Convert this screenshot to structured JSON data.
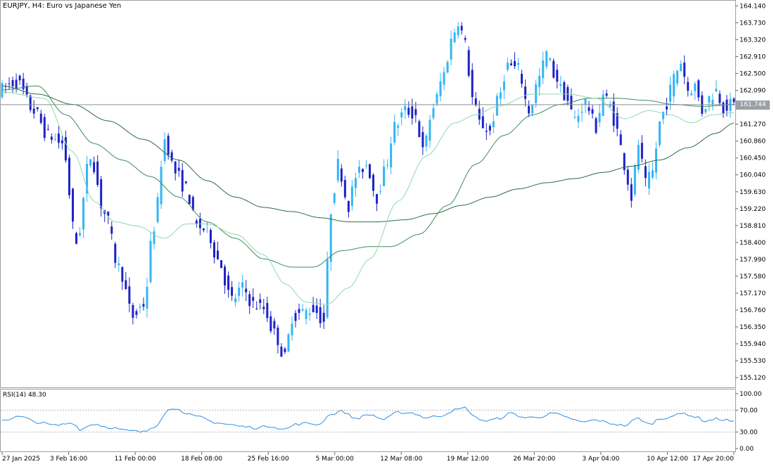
{
  "header": {
    "title": "EURJPY, H4:  Euro vs Japanese Yen",
    "current_price": "161.744"
  },
  "rsi_panel": {
    "title": "RSI(14) 48.30",
    "levels": [
      "100.00",
      "70.00",
      "30.00",
      "0.00"
    ]
  },
  "colors": {
    "bull": "#33b5f5",
    "bear": "#1c22c6",
    "ma_fast": "#8fd8b0",
    "ma_mid": "#3e8c5c",
    "ma_slow": "#2f6b47",
    "rsi": "#2f8fe0"
  },
  "chart_data": {
    "type": "candlestick",
    "symbol": "EURJPY",
    "timeframe": "H4",
    "title": "EURJPY, H4:  Euro vs Japanese Yen",
    "ylim": [
      154.9,
      164.25
    ],
    "y_ticks": [
      "164.140",
      "163.730",
      "163.320",
      "162.910",
      "162.500",
      "162.090",
      "161.680",
      "161.270",
      "160.860",
      "160.450",
      "160.040",
      "159.630",
      "159.220",
      "158.810",
      "158.400",
      "157.990",
      "157.580",
      "157.170",
      "156.760",
      "156.350",
      "155.940",
      "155.530",
      "155.120"
    ],
    "x_ticks": [
      "27 Jan 2025",
      "3 Feb 16:00",
      "11 Feb 00:00",
      "18 Feb 08:00",
      "25 Feb 16:00",
      "5 Mar 00:00",
      "12 Mar 08:00",
      "19 Mar 12:00",
      "26 Mar 20:00",
      "3 Apr 04:00",
      "10 Apr 12:00",
      "17 Apr 20:00"
    ],
    "current_price": 161.744,
    "price_anchors": [
      [
        0,
        162.1
      ],
      [
        5,
        162.3
      ],
      [
        10,
        161.6
      ],
      [
        14,
        161.0
      ],
      [
        18,
        160.8
      ],
      [
        22,
        158.4
      ],
      [
        26,
        160.5
      ],
      [
        30,
        159.1
      ],
      [
        34,
        157.8
      ],
      [
        38,
        156.6
      ],
      [
        41,
        156.9
      ],
      [
        44,
        158.8
      ],
      [
        47,
        160.9
      ],
      [
        50,
        160.1
      ],
      [
        53,
        159.7
      ],
      [
        56,
        158.8
      ],
      [
        59,
        158.7
      ],
      [
        62,
        158.0
      ],
      [
        66,
        157.0
      ],
      [
        69,
        157.3
      ],
      [
        72,
        156.9
      ],
      [
        75,
        156.8
      ],
      [
        78,
        156.2
      ],
      [
        81,
        155.6
      ],
      [
        83,
        156.6
      ],
      [
        86,
        156.7
      ],
      [
        89,
        156.8
      ],
      [
        92,
        156.5
      ],
      [
        94,
        159.2
      ],
      [
        96,
        160.3
      ],
      [
        99,
        159.3
      ],
      [
        101,
        160.0
      ],
      [
        104,
        160.3
      ],
      [
        107,
        159.5
      ],
      [
        109,
        160.1
      ],
      [
        112,
        161.2
      ],
      [
        115,
        161.6
      ],
      [
        118,
        161.5
      ],
      [
        120,
        160.6
      ],
      [
        123,
        161.7
      ],
      [
        126,
        162.5
      ],
      [
        128,
        163.3
      ],
      [
        130,
        163.8
      ],
      [
        132,
        163.2
      ],
      [
        134,
        161.9
      ],
      [
        136,
        161.3
      ],
      [
        139,
        161.1
      ],
      [
        141,
        161.8
      ],
      [
        144,
        162.7
      ],
      [
        147,
        162.6
      ],
      [
        150,
        161.6
      ],
      [
        153,
        162.4
      ],
      [
        155,
        163.0
      ],
      [
        157,
        162.5
      ],
      [
        160,
        162.0
      ],
      [
        163,
        161.4
      ],
      [
        166,
        161.8
      ],
      [
        169,
        161.2
      ],
      [
        171,
        162.0
      ],
      [
        173,
        161.7
      ],
      [
        175,
        161.1
      ],
      [
        177,
        160.3
      ],
      [
        179,
        159.5
      ],
      [
        181,
        160.8
      ],
      [
        183,
        159.8
      ],
      [
        185,
        160.1
      ],
      [
        187,
        161.3
      ],
      [
        189,
        161.8
      ],
      [
        191,
        162.4
      ],
      [
        193,
        162.8
      ],
      [
        195,
        162.1
      ],
      [
        197,
        162.2
      ],
      [
        199,
        161.6
      ],
      [
        201,
        161.9
      ],
      [
        203,
        162.1
      ],
      [
        205,
        161.7
      ],
      [
        207,
        161.74
      ]
    ],
    "ma_fast_anchors": [
      [
        0,
        162.05
      ],
      [
        12,
        161.9
      ],
      [
        20,
        160.6
      ],
      [
        26,
        159.4
      ],
      [
        32,
        158.9
      ],
      [
        38,
        158.8
      ],
      [
        46,
        158.5
      ],
      [
        52,
        158.85
      ],
      [
        58,
        158.85
      ],
      [
        66,
        158.6
      ],
      [
        74,
        158.1
      ],
      [
        80,
        157.4
      ],
      [
        86,
        156.95
      ],
      [
        92,
        156.9
      ],
      [
        98,
        157.3
      ],
      [
        104,
        158.0
      ],
      [
        112,
        159.4
      ],
      [
        120,
        160.5
      ],
      [
        128,
        161.3
      ],
      [
        134,
        161.5
      ],
      [
        140,
        161.7
      ],
      [
        150,
        162.0
      ],
      [
        160,
        162.0
      ],
      [
        168,
        161.9
      ],
      [
        176,
        161.4
      ],
      [
        183,
        161.6
      ],
      [
        189,
        161.5
      ],
      [
        195,
        161.3
      ],
      [
        201,
        161.5
      ],
      [
        207,
        161.55
      ]
    ],
    "ma_mid_anchors": [
      [
        0,
        162.1
      ],
      [
        10,
        162.2
      ],
      [
        18,
        161.5
      ],
      [
        26,
        160.8
      ],
      [
        34,
        160.4
      ],
      [
        42,
        160.0
      ],
      [
        50,
        159.5
      ],
      [
        58,
        158.9
      ],
      [
        66,
        158.5
      ],
      [
        74,
        158.0
      ],
      [
        82,
        157.8
      ],
      [
        88,
        157.8
      ],
      [
        96,
        158.2
      ],
      [
        104,
        158.3
      ],
      [
        110,
        158.3
      ],
      [
        118,
        158.6
      ],
      [
        126,
        159.3
      ],
      [
        134,
        160.3
      ],
      [
        142,
        161.0
      ],
      [
        150,
        161.5
      ],
      [
        158,
        161.75
      ],
      [
        166,
        161.9
      ],
      [
        174,
        161.9
      ],
      [
        182,
        161.85
      ],
      [
        190,
        161.75
      ],
      [
        198,
        161.7
      ],
      [
        207,
        161.75
      ]
    ],
    "ma_slow_anchors": [
      [
        0,
        162.2
      ],
      [
        10,
        162.0
      ],
      [
        20,
        161.75
      ],
      [
        30,
        161.35
      ],
      [
        40,
        160.9
      ],
      [
        50,
        160.4
      ],
      [
        58,
        159.9
      ],
      [
        66,
        159.5
      ],
      [
        74,
        159.25
      ],
      [
        82,
        159.15
      ],
      [
        90,
        159.0
      ],
      [
        98,
        158.9
      ],
      [
        106,
        158.9
      ],
      [
        114,
        158.95
      ],
      [
        122,
        159.1
      ],
      [
        130,
        159.3
      ],
      [
        138,
        159.5
      ],
      [
        146,
        159.7
      ],
      [
        154,
        159.85
      ],
      [
        162,
        159.95
      ],
      [
        170,
        160.1
      ],
      [
        178,
        160.25
      ],
      [
        186,
        160.4
      ],
      [
        194,
        160.7
      ],
      [
        202,
        161.05
      ],
      [
        207,
        161.3
      ]
    ],
    "rsi_anchors": [
      [
        0,
        52
      ],
      [
        5,
        58
      ],
      [
        10,
        48
      ],
      [
        15,
        42
      ],
      [
        20,
        47
      ],
      [
        22,
        35
      ],
      [
        26,
        45
      ],
      [
        30,
        39
      ],
      [
        36,
        32
      ],
      [
        40,
        30
      ],
      [
        43,
        40
      ],
      [
        47,
        70
      ],
      [
        50,
        74
      ],
      [
        52,
        62
      ],
      [
        56,
        57
      ],
      [
        60,
        48
      ],
      [
        64,
        44
      ],
      [
        68,
        40
      ],
      [
        72,
        38
      ],
      [
        76,
        41
      ],
      [
        80,
        35
      ],
      [
        83,
        44
      ],
      [
        86,
        46
      ],
      [
        90,
        44
      ],
      [
        92,
        60
      ],
      [
        96,
        68
      ],
      [
        100,
        55
      ],
      [
        104,
        62
      ],
      [
        108,
        53
      ],
      [
        112,
        66
      ],
      [
        116,
        65
      ],
      [
        120,
        56
      ],
      [
        124,
        60
      ],
      [
        128,
        70
      ],
      [
        131,
        74
      ],
      [
        134,
        56
      ],
      [
        137,
        50
      ],
      [
        140,
        54
      ],
      [
        144,
        64
      ],
      [
        148,
        56
      ],
      [
        152,
        58
      ],
      [
        156,
        64
      ],
      [
        160,
        56
      ],
      [
        164,
        48
      ],
      [
        168,
        52
      ],
      [
        172,
        46
      ],
      [
        176,
        42
      ],
      [
        180,
        55
      ],
      [
        183,
        44
      ],
      [
        186,
        54
      ],
      [
        190,
        60
      ],
      [
        193,
        64
      ],
      [
        196,
        58
      ],
      [
        199,
        50
      ],
      [
        202,
        54
      ],
      [
        205,
        52
      ],
      [
        207,
        48
      ]
    ]
  }
}
